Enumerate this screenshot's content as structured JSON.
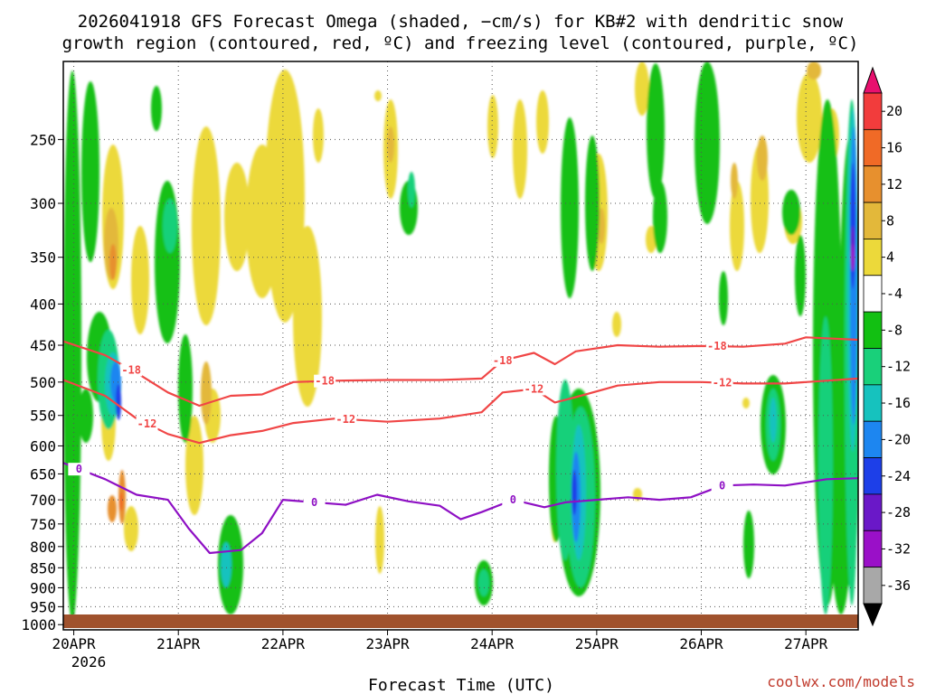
{
  "chart_data": {
    "type": "time-height",
    "title_line1": "2026041918 GFS Forecast Omega (shaded, −cm/s) for KB#2 with dendritic snow",
    "title_line2": "growth region (contoured, red, ºC) and freezing level (contoured, purple, ºC)",
    "xlabel": "Forecast Time (UTC)",
    "credit": "coolwx.com/models",
    "x_ticks": [
      "20APR",
      "21APR",
      "22APR",
      "23APR",
      "24APR",
      "25APR",
      "26APR",
      "27APR"
    ],
    "x_year": "2026",
    "x_range_days": [
      -0.1,
      7.5
    ],
    "y_ticks": [
      250,
      300,
      350,
      400,
      450,
      500,
      550,
      600,
      650,
      700,
      750,
      800,
      850,
      900,
      950,
      1000
    ],
    "y_range_hpa": [
      200,
      1015
    ],
    "colorbar": {
      "labels": [
        20,
        16,
        12,
        8,
        4,
        -4,
        -8,
        -12,
        -16,
        -20,
        -24,
        -28,
        -32,
        -36
      ],
      "colors": [
        "#e8106e",
        "#f23c3c",
        "#f06a26",
        "#e7902e",
        "#e3b83a",
        "#ecd93a",
        "#ffffff",
        "#12c012",
        "#19d07a",
        "#16c2be",
        "#1d86f0",
        "#1d3fe8",
        "#6a18c8",
        "#9a10c8",
        "#a8a8a8",
        "#000000"
      ]
    },
    "contours": [
      {
        "name": "dendritic top",
        "label": "-18",
        "color": "#f04646",
        "x": [
          -0.1,
          0.3,
          0.6,
          0.9,
          1.2,
          1.5,
          1.8,
          2.1,
          2.5,
          3.0,
          3.5,
          3.9,
          4.1,
          4.4,
          4.6,
          4.8,
          5.2,
          5.6,
          6.0,
          6.4,
          6.8,
          7.0,
          7.5
        ],
        "y": [
          445,
          463,
          487,
          515,
          535,
          520,
          518,
          500,
          498,
          497,
          497,
          495,
          470,
          460,
          475,
          458,
          450,
          452,
          451,
          452,
          448,
          440,
          443
        ]
      },
      {
        "name": "dendritic bottom",
        "label": "-12",
        "color": "#f04646",
        "x": [
          -0.1,
          0.3,
          0.6,
          0.9,
          1.2,
          1.5,
          1.8,
          2.1,
          2.5,
          3.0,
          3.5,
          3.9,
          4.1,
          4.4,
          4.6,
          4.8,
          5.2,
          5.6,
          6.0,
          6.4,
          6.8,
          7.0,
          7.5
        ],
        "y": [
          497,
          520,
          555,
          580,
          595,
          582,
          575,
          562,
          555,
          560,
          555,
          545,
          515,
          510,
          530,
          522,
          505,
          500,
          500,
          502,
          502,
          500,
          495
        ]
      },
      {
        "name": "freezing level",
        "label": "0",
        "color": "#8e10c4",
        "x": [
          -0.1,
          0.3,
          0.6,
          0.9,
          1.1,
          1.3,
          1.6,
          1.8,
          2.0,
          2.3,
          2.6,
          2.9,
          3.2,
          3.5,
          3.7,
          3.9,
          4.2,
          4.5,
          4.7,
          5.0,
          5.3,
          5.6,
          5.9,
          6.2,
          6.5,
          6.8,
          7.2,
          7.5
        ],
        "y": [
          630,
          660,
          690,
          700,
          760,
          815,
          808,
          770,
          700,
          705,
          710,
          690,
          703,
          712,
          740,
          725,
          700,
          715,
          705,
          700,
          695,
          700,
          695,
          672,
          670,
          672,
          660,
          658
        ]
      }
    ]
  }
}
